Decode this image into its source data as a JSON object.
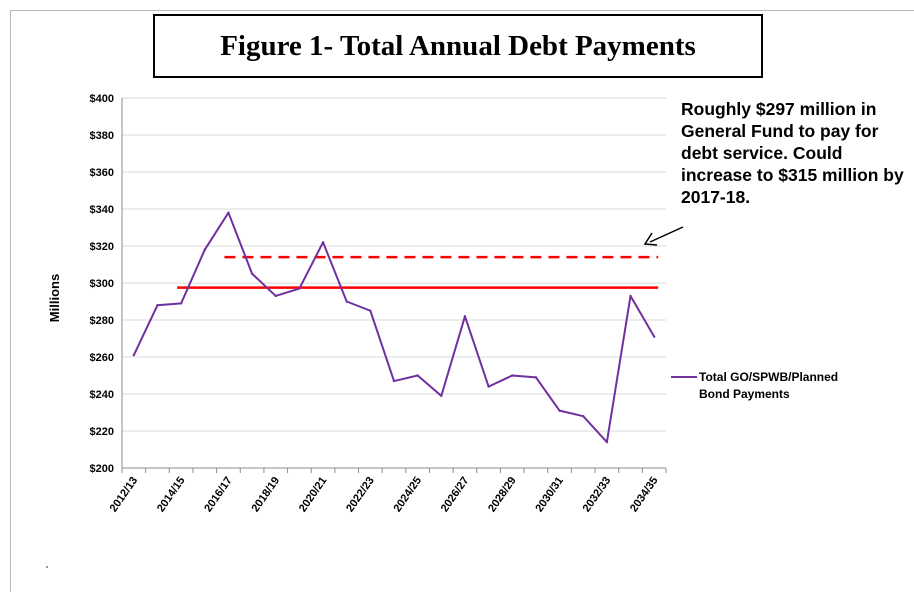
{
  "chart_data": {
    "type": "line",
    "title": "Figure 1- Total Annual Debt Payments",
    "ylabel": "Millions",
    "xlabel": "",
    "ylim": [
      200,
      400
    ],
    "yticks": [
      200,
      220,
      240,
      260,
      280,
      300,
      320,
      340,
      360,
      380,
      400
    ],
    "ytick_labels": [
      "$200",
      "$220",
      "$240",
      "$260",
      "$280",
      "$300",
      "$320",
      "$340",
      "$360",
      "$380",
      "$400"
    ],
    "x": [
      "2012/13",
      "2013/14",
      "2014/15",
      "2015/16",
      "2016/17",
      "2017/18",
      "2018/19",
      "2019/20",
      "2020/21",
      "2021/22",
      "2022/23",
      "2023/24",
      "2024/25",
      "2025/26",
      "2026/27",
      "2027/28",
      "2028/29",
      "2029/30",
      "2030/31",
      "2031/32",
      "2032/33",
      "2033/34",
      "2034/35"
    ],
    "xtick_labels": [
      "2012/13",
      "2014/15",
      "2016/17",
      "2018/19",
      "2020/21",
      "2022/23",
      "2024/25",
      "2026/27",
      "2028/29",
      "2030/31",
      "2032/33",
      "2034/35"
    ],
    "series": [
      {
        "name": "Total GO/SPWB/Planned Bond Payments",
        "color": "#7030a0",
        "values": [
          261,
          288,
          289,
          318,
          338,
          305,
          293,
          297,
          322,
          290,
          285,
          247,
          250,
          239,
          282,
          244,
          250,
          249,
          231,
          228,
          214,
          293,
          271
        ]
      }
    ],
    "reference_lines": [
      {
        "value": 297.5,
        "style": "solid",
        "color": "#ff0000",
        "from": "2014/15",
        "to": "2034/35"
      },
      {
        "value": 314,
        "style": "dashed",
        "color": "#ff0000",
        "from": "2016/17",
        "to": "2034/35"
      }
    ],
    "annotation": "Roughly $297 million in General Fund  to pay for debt service.  Could increase to $315 million by 2017-18.",
    "legend_position": "right",
    "grid": true
  }
}
